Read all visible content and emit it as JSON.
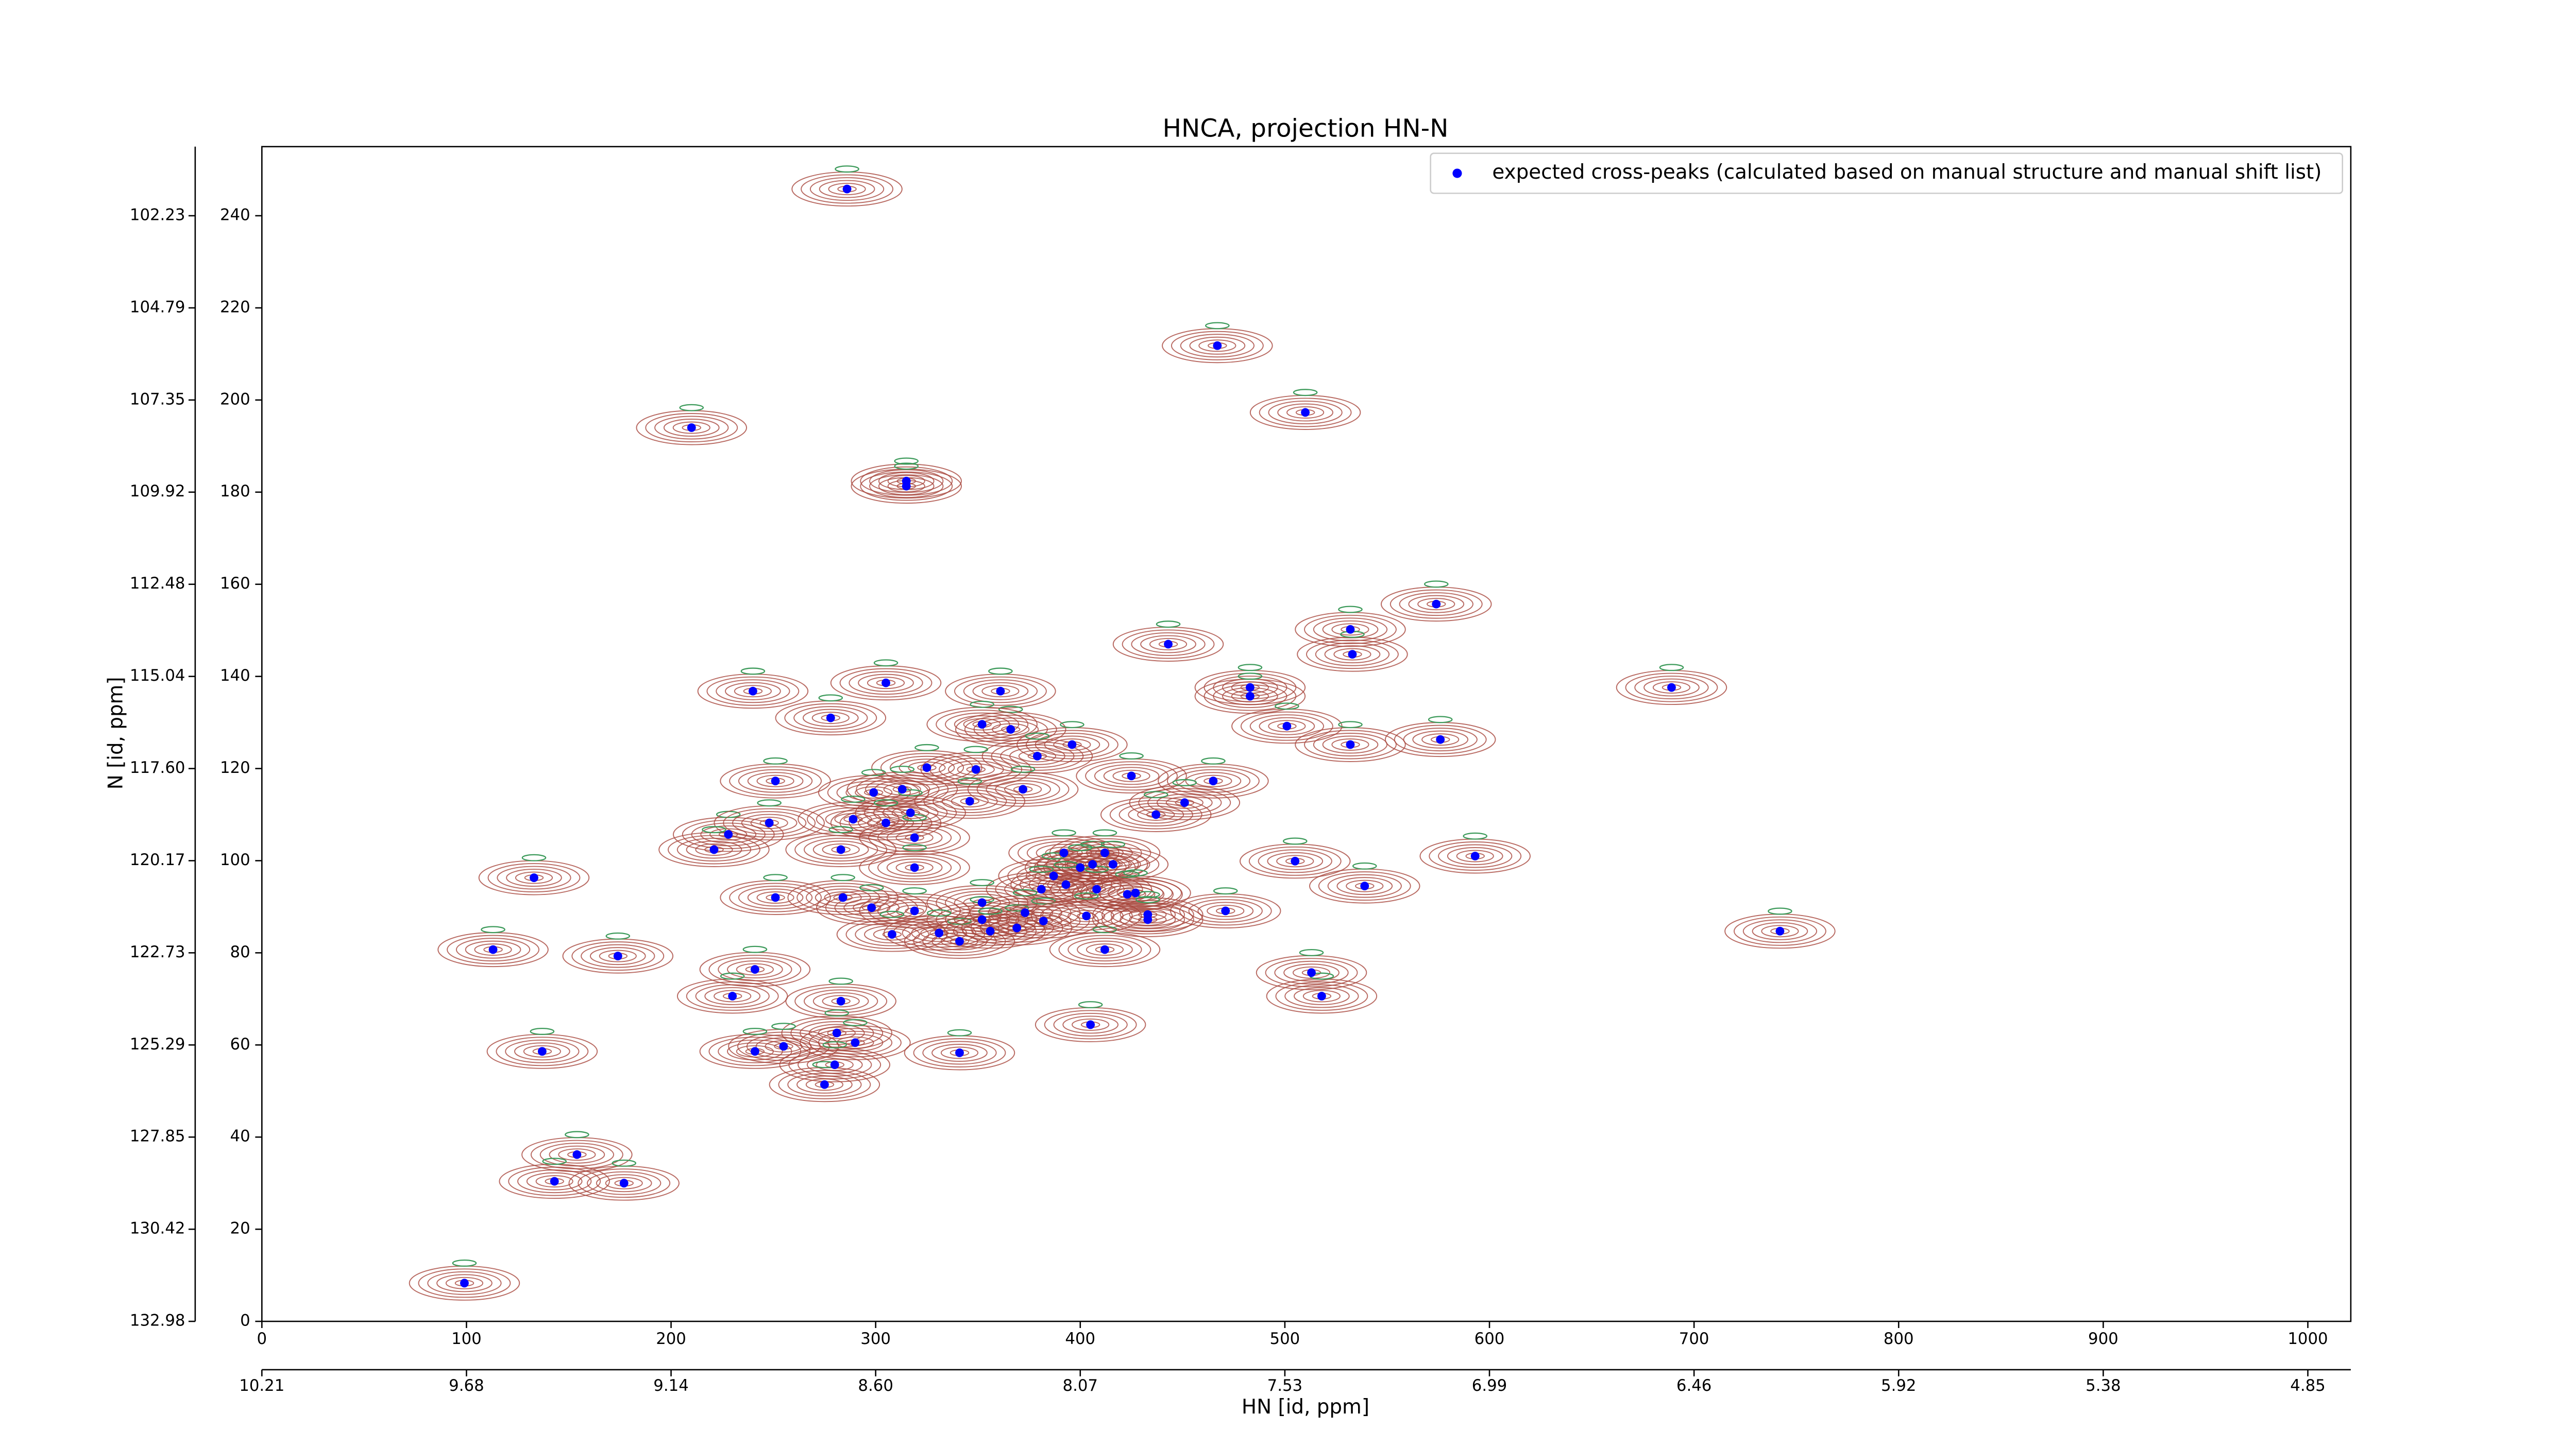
{
  "chart_data": {
    "type": "scatter",
    "title": "HNCA, projection HN-N",
    "xlabel": "HN [id, ppm]",
    "ylabel": "N [id, ppm]",
    "xlim": [
      0,
      1021
    ],
    "ylim": [
      0,
      255
    ],
    "xticks": [
      0,
      100,
      200,
      300,
      400,
      500,
      600,
      700,
      800,
      900,
      1000
    ],
    "yticks": [
      0,
      20,
      40,
      60,
      80,
      100,
      120,
      140,
      160,
      180,
      200,
      220,
      240
    ],
    "xticks_ppm": [
      {
        "value": 0,
        "label": "10.21"
      },
      {
        "value": 100,
        "label": "9.68"
      },
      {
        "value": 200,
        "label": "9.14"
      },
      {
        "value": 300,
        "label": "8.60"
      },
      {
        "value": 400,
        "label": "8.07"
      },
      {
        "value": 500,
        "label": "7.53"
      },
      {
        "value": 600,
        "label": "6.99"
      },
      {
        "value": 700,
        "label": "6.46"
      },
      {
        "value": 800,
        "label": "5.92"
      },
      {
        "value": 900,
        "label": "5.38"
      },
      {
        "value": 1000,
        "label": "4.85"
      }
    ],
    "yticks_ppm": [
      {
        "value": 0,
        "label": "132.98"
      },
      {
        "value": 20,
        "label": "130.42"
      },
      {
        "value": 40,
        "label": "127.85"
      },
      {
        "value": 60,
        "label": "125.29"
      },
      {
        "value": 80,
        "label": "122.73"
      },
      {
        "value": 100,
        "label": "120.17"
      },
      {
        "value": 120,
        "label": "117.60"
      },
      {
        "value": 140,
        "label": "115.04"
      },
      {
        "value": 160,
        "label": "112.48"
      },
      {
        "value": 180,
        "label": "109.92"
      },
      {
        "value": 200,
        "label": "107.35"
      },
      {
        "value": 220,
        "label": "104.79"
      },
      {
        "value": 240,
        "label": "102.23"
      }
    ],
    "legend": "upper right",
    "contour_colors": [
      "#a8463c",
      "#3c9a5a"
    ],
    "series": [
      {
        "name": "expected cross-peaks (calculated based on manual structure and manual shift list)",
        "color": "#0000ff",
        "x": [
          286,
          467,
          210,
          510,
          315,
          315,
          574,
          443,
          532,
          533,
          240,
          305,
          361,
          483,
          483,
          689,
          278,
          366,
          352,
          501,
          532,
          576,
          396,
          379,
          251,
          325,
          349,
          425,
          465,
          299,
          313,
          346,
          372,
          451,
          437,
          228,
          248,
          289,
          317,
          305,
          319,
          221,
          283,
          319,
          392,
          406,
          412,
          416,
          400,
          387,
          393,
          381,
          408,
          593,
          505,
          539,
          133,
          251,
          284,
          298,
          319,
          352,
          352,
          373,
          423,
          427,
          433,
          369,
          382,
          403,
          471,
          331,
          341,
          356,
          412,
          308,
          433,
          742,
          113,
          174,
          241,
          513,
          518,
          230,
          283,
          405,
          281,
          290,
          255,
          241,
          137,
          341,
          280,
          275,
          154,
          143,
          177,
          99
        ],
        "values": [
          245.8,
          211.8,
          194,
          197.3,
          182.4,
          181.3,
          155.7,
          147,
          150.2,
          144.8,
          136.8,
          138.6,
          136.8,
          137.6,
          135.7,
          137.6,
          131,
          128.5,
          129.6,
          129.2,
          125.2,
          126.3,
          125.2,
          122.7,
          117.3,
          120.2,
          119.8,
          118.4,
          117.3,
          114.8,
          115.5,
          112.9,
          115.5,
          112.6,
          110,
          105.7,
          108.2,
          109,
          110.4,
          108.2,
          105,
          102.4,
          102.4,
          98.5,
          101.7,
          99.2,
          101.7,
          99.2,
          98.5,
          96.7,
          94.8,
          93.8,
          93.8,
          101,
          99.9,
          94.5,
          96.3,
          92,
          92,
          89.8,
          89.1,
          90.9,
          87.2,
          88.7,
          92.7,
          93,
          88.3,
          85.4,
          86.9,
          88,
          89.1,
          84.3,
          82.5,
          84.7,
          80.7,
          84,
          87.2,
          84.7,
          80.7,
          79.3,
          76.4,
          75.7,
          70.6,
          70.6,
          69.5,
          64.4,
          62.6,
          60.5,
          59.7,
          58.6,
          58.6,
          58.3,
          55.7,
          51.4,
          36.2,
          30.4,
          30,
          8.3
        ]
      }
    ]
  }
}
